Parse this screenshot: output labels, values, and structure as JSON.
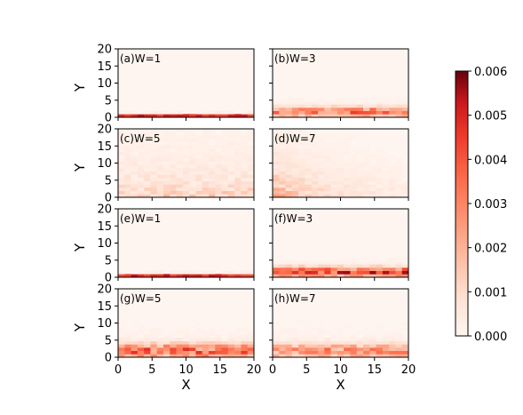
{
  "chart_data": {
    "type": "heatmap",
    "x_tick_labels": [
      "0",
      "5",
      "10",
      "15",
      "20"
    ],
    "y_tick_labels": [
      "0",
      "5",
      "10",
      "15",
      "20"
    ],
    "xlabel": "X",
    "ylabel": "Y",
    "xlim": [
      0,
      20
    ],
    "ylim": [
      0,
      20
    ],
    "colorbar": {
      "min": 0.0,
      "max": 0.006,
      "tick_labels": [
        "0.000",
        "0.001",
        "0.002",
        "0.003",
        "0.004",
        "0.005",
        "0.006"
      ],
      "colormap": "Reds",
      "low_color": "#fff5f0",
      "high_color": "#67000d"
    },
    "panels": [
      {
        "label": "(a)W=1",
        "row": 0,
        "col": 0,
        "pattern": "edge-line",
        "peak_y": 0.5,
        "intensity": 0.9
      },
      {
        "label": "(b)W=3",
        "row": 0,
        "col": 1,
        "pattern": "bottom-band",
        "peak_y": 1.5,
        "intensity": 0.75
      },
      {
        "label": "(c)W=5",
        "row": 1,
        "col": 0,
        "pattern": "diffuse",
        "peak_y": 3,
        "intensity": 0.45
      },
      {
        "label": "(d)W=7",
        "row": 1,
        "col": 1,
        "pattern": "diffuse-left",
        "peak_y": 5,
        "intensity": 0.45
      },
      {
        "label": "(e)W=1",
        "row": 2,
        "col": 0,
        "pattern": "edge-line",
        "peak_y": 0.5,
        "intensity": 0.9
      },
      {
        "label": "(f)W=3",
        "row": 2,
        "col": 1,
        "pattern": "bottom-band",
        "peak_y": 1.5,
        "intensity": 0.95
      },
      {
        "label": "(g)W=5",
        "row": 3,
        "col": 0,
        "pattern": "bottom-band-wide",
        "peak_y": 2,
        "intensity": 0.8
      },
      {
        "label": "(h)W=7",
        "row": 3,
        "col": 1,
        "pattern": "bottom-band-wide",
        "peak_y": 2,
        "intensity": 0.6
      }
    ]
  }
}
